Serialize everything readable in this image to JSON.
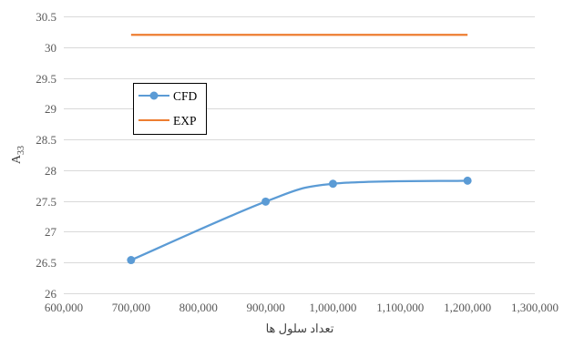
{
  "chart_data": {
    "type": "line",
    "title": "",
    "xlabel": "تعداد سلول ها",
    "ylabel": {
      "base": "A",
      "subscript": "33"
    },
    "xlim": [
      600000,
      1300000
    ],
    "ylim": [
      26,
      30.5
    ],
    "x_ticks": [
      {
        "value": 600000,
        "label": "600,000"
      },
      {
        "value": 700000,
        "label": "700,000"
      },
      {
        "value": 800000,
        "label": "800,000"
      },
      {
        "value": 900000,
        "label": "900,000"
      },
      {
        "value": 1000000,
        "label": "1,000,000"
      },
      {
        "value": 1100000,
        "label": "1,100,000"
      },
      {
        "value": 1200000,
        "label": "1,200,000"
      },
      {
        "value": 1300000,
        "label": "1,300,000"
      }
    ],
    "y_ticks": [
      {
        "value": 26,
        "label": "26"
      },
      {
        "value": 26.5,
        "label": "26.5"
      },
      {
        "value": 27,
        "label": "27"
      },
      {
        "value": 27.5,
        "label": "27.5"
      },
      {
        "value": 28,
        "label": "28"
      },
      {
        "value": 28.5,
        "label": "28.5"
      },
      {
        "value": 29,
        "label": "29"
      },
      {
        "value": 29.5,
        "label": "29.5"
      },
      {
        "value": 30,
        "label": "30"
      },
      {
        "value": 30.5,
        "label": "30.5"
      }
    ],
    "grid": true,
    "legend_position": "upper-left",
    "series": [
      {
        "name": "CFD",
        "color": "#5B9BD5",
        "smooth": true,
        "markers": true,
        "points": [
          {
            "x": 700000,
            "y": 26.54
          },
          {
            "x": 900000,
            "y": 27.49
          },
          {
            "x": 1000000,
            "y": 27.78
          },
          {
            "x": 1200000,
            "y": 27.83
          }
        ]
      },
      {
        "name": "EXP",
        "color": "#ED7D31",
        "smooth": false,
        "markers": false,
        "points": [
          {
            "x": 700000,
            "y": 30.2
          },
          {
            "x": 1200000,
            "y": 30.2
          }
        ]
      }
    ]
  }
}
